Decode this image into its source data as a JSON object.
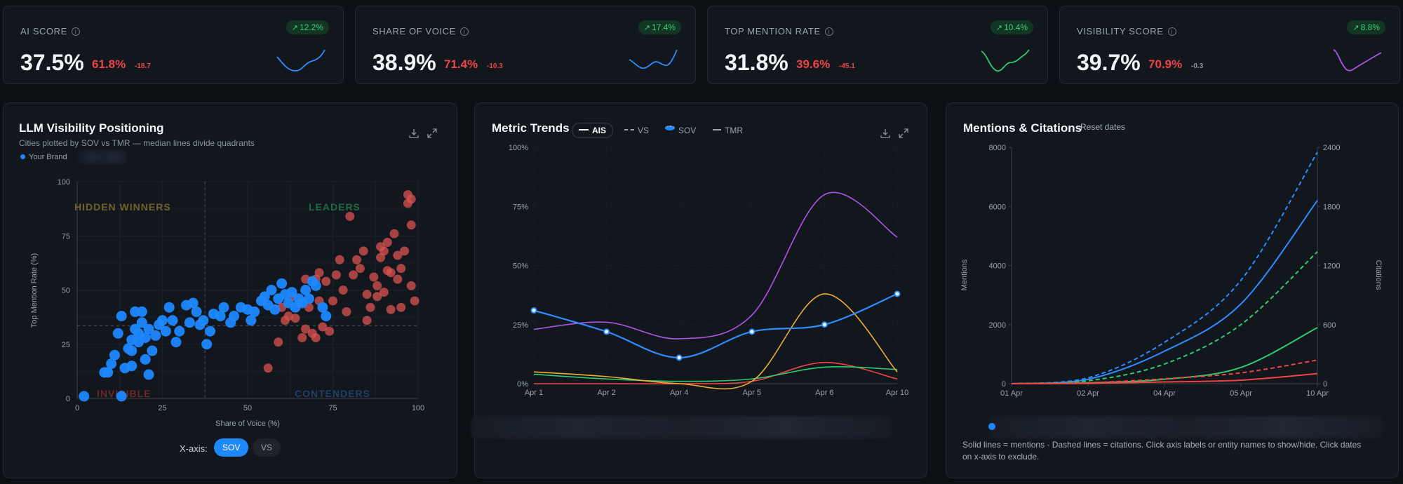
{
  "kpis": [
    {
      "title": "AI SCORE",
      "badge": "12.2%",
      "value": "37.5%",
      "comparison": "61.8%",
      "delta": "-18.7",
      "delta_tone": "negative",
      "spark_color": "#2d8cff"
    },
    {
      "title": "SHARE OF VOICE",
      "badge": "17.4%",
      "value": "38.9%",
      "comparison": "71.4%",
      "delta": "-10.3",
      "delta_tone": "negative",
      "spark_color": "#2d8cff"
    },
    {
      "title": "TOP MENTION RATE",
      "badge": "10.4%",
      "value": "31.8%",
      "comparison": "39.6%",
      "delta": "-45.1",
      "delta_tone": "negative",
      "spark_color": "#2ecc71"
    },
    {
      "title": "VISIBILITY SCORE",
      "badge": "8.8%",
      "value": "39.7%",
      "comparison": "70.9%",
      "delta": "-0.3",
      "delta_tone": "neutral",
      "spark_color": "#b054e8"
    }
  ],
  "positioning": {
    "title": "LLM Visibility Positioning",
    "subtitle": "Cities plotted by SOV vs TMR — median lines divide quadrants",
    "legend_brand": "Your Brand",
    "quadrants": {
      "top_left": "HIDDEN WINNERS",
      "top_right": "LEADERS",
      "bottom_left": "INVISIBLE",
      "bottom_right": "CONTENDERS"
    },
    "x_axis_toggle_label": "X-axis:",
    "x_axis_options": [
      "SOV",
      "VS"
    ],
    "x_axis_selected": "SOV"
  },
  "trends": {
    "title": "Metric Trends",
    "pills": [
      {
        "label": "AIS",
        "active": true
      },
      {
        "label": "VS",
        "active": false
      },
      {
        "label": "SOV",
        "active": false
      },
      {
        "label": "TMR",
        "active": false
      }
    ]
  },
  "mentions": {
    "title": "Mentions & Citations",
    "reset_label": "Reset dates",
    "note": "Solid lines = mentions · Dashed lines = citations. Click axis labels or entity names to show/hide. Click dates on x-axis to exclude."
  },
  "icons": [
    "download-icon",
    "expand-icon",
    "info-icon",
    "trend-up-icon"
  ],
  "chart_data": [
    {
      "type": "scatter",
      "xlabel": "Share of Voice (%)",
      "ylabel": "Top Mention Rate (%)",
      "xlim": [
        0,
        100
      ],
      "ylim": [
        0,
        100
      ],
      "x_ticks": [
        "0",
        "25",
        "50",
        "75",
        "100"
      ],
      "y_ticks": [
        "0",
        "25",
        "50",
        "75",
        "100"
      ],
      "median_x": 37.5,
      "median_y": 33.5,
      "series": [
        {
          "name": "Your Brand",
          "color": "#1e88ff",
          "points": [
            [
              2,
              1
            ],
            [
              13,
              1
            ],
            [
              8,
              12
            ],
            [
              9,
              12
            ],
            [
              10,
              16
            ],
            [
              11,
              20
            ],
            [
              12,
              30
            ],
            [
              13,
              38
            ],
            [
              14,
              14
            ],
            [
              15,
              23
            ],
            [
              16,
              15
            ],
            [
              16,
              22
            ],
            [
              16,
              27
            ],
            [
              17,
              32
            ],
            [
              17,
              40
            ],
            [
              18,
              26
            ],
            [
              18,
              30
            ],
            [
              19,
              35
            ],
            [
              19,
              40
            ],
            [
              20,
              18
            ],
            [
              20,
              28
            ],
            [
              21,
              32
            ],
            [
              21,
              11
            ],
            [
              22,
              22
            ],
            [
              23,
              29
            ],
            [
              24,
              34
            ],
            [
              25,
              36
            ],
            [
              26,
              31
            ],
            [
              27,
              42
            ],
            [
              28,
              36
            ],
            [
              29,
              26
            ],
            [
              30,
              31
            ],
            [
              32,
              43
            ],
            [
              33,
              35
            ],
            [
              34,
              44
            ],
            [
              35,
              40
            ],
            [
              36,
              34
            ],
            [
              37,
              36
            ],
            [
              38,
              25
            ],
            [
              39,
              31
            ],
            [
              40,
              39
            ],
            [
              42,
              38
            ],
            [
              43,
              42
            ],
            [
              45,
              35
            ],
            [
              46,
              38
            ],
            [
              48,
              42
            ],
            [
              50,
              41
            ],
            [
              51,
              36
            ],
            [
              52,
              40
            ],
            [
              54,
              45
            ],
            [
              55,
              47
            ],
            [
              56,
              43
            ],
            [
              57,
              50
            ],
            [
              58,
              41
            ],
            [
              59,
              46
            ],
            [
              60,
              53
            ],
            [
              61,
              48
            ],
            [
              62,
              44
            ],
            [
              63,
              49
            ],
            [
              64,
              42
            ],
            [
              65,
              46
            ],
            [
              66,
              44
            ],
            [
              67,
              50
            ],
            [
              68,
              46
            ],
            [
              69,
              54
            ],
            [
              70,
              52
            ],
            [
              72,
              42
            ],
            [
              73,
              38
            ]
          ]
        },
        {
          "name": "Competitors",
          "color": "#d9534f",
          "points": [
            [
              56,
              14
            ],
            [
              59,
              26
            ],
            [
              60,
              42
            ],
            [
              61,
              36
            ],
            [
              62,
              38
            ],
            [
              63,
              47
            ],
            [
              64,
              37
            ],
            [
              65,
              44
            ],
            [
              66,
              28
            ],
            [
              67,
              32
            ],
            [
              67,
              55
            ],
            [
              68,
              42
            ],
            [
              69,
              30
            ],
            [
              70,
              55
            ],
            [
              70,
              28
            ],
            [
              71,
              58
            ],
            [
              71,
              45
            ],
            [
              72,
              33
            ],
            [
              73,
              54
            ],
            [
              74,
              31
            ],
            [
              75,
              45
            ],
            [
              76,
              57
            ],
            [
              77,
              64
            ],
            [
              78,
              50
            ],
            [
              79,
              40
            ],
            [
              80,
              84
            ],
            [
              81,
              57
            ],
            [
              82,
              64
            ],
            [
              83,
              60
            ],
            [
              84,
              68
            ],
            [
              85,
              36
            ],
            [
              85,
              48
            ],
            [
              86,
              42
            ],
            [
              87,
              56
            ],
            [
              88,
              52
            ],
            [
              88,
              47
            ],
            [
              89,
              65
            ],
            [
              89,
              70
            ],
            [
              90,
              68
            ],
            [
              90,
              49
            ],
            [
              91,
              59
            ],
            [
              91,
              72
            ],
            [
              92,
              41
            ],
            [
              92,
              58
            ],
            [
              93,
              76
            ],
            [
              94,
              66
            ],
            [
              94,
              55
            ],
            [
              95,
              60
            ],
            [
              95,
              42
            ],
            [
              96,
              68
            ],
            [
              97,
              94
            ],
            [
              97,
              90
            ],
            [
              98,
              92
            ],
            [
              98,
              80
            ],
            [
              98,
              52
            ],
            [
              99,
              45
            ]
          ]
        }
      ]
    },
    {
      "type": "line",
      "categories": [
        "Apr 1",
        "Apr 2",
        "Apr 4",
        "Apr 5",
        "Apr 6",
        "Apr 10"
      ],
      "ylim": [
        0,
        100
      ],
      "y_ticks": [
        "0%",
        "25%",
        "50%",
        "75%",
        "100%"
      ],
      "series": [
        {
          "name": "AIS",
          "color": "#2d8cff",
          "values": [
            31,
            22,
            11,
            22,
            25,
            38
          ],
          "markers": true
        },
        {
          "name": "VS",
          "color": "#b054e8",
          "values": [
            23,
            26,
            19,
            29,
            80,
            62
          ]
        },
        {
          "name": "SOV",
          "color": "#f0ad33",
          "values": [
            5,
            3,
            0,
            1,
            38,
            5
          ]
        },
        {
          "name": "TMR",
          "color": "#2ecc71",
          "values": [
            4,
            2,
            1,
            2,
            7,
            6
          ]
        },
        {
          "color": "#ef4444",
          "values": [
            0,
            0,
            0,
            1,
            9,
            2
          ]
        }
      ]
    },
    {
      "type": "line",
      "categories": [
        "01 Apr",
        "02 Apr",
        "04 Apr",
        "05 Apr",
        "10 Apr"
      ],
      "ylabel": "Mentions",
      "y2label": "Citations",
      "ylim": [
        0,
        8000
      ],
      "y2lim": [
        0,
        2400
      ],
      "y_ticks": [
        "0",
        "2000",
        "4000",
        "6000",
        "8000"
      ],
      "y2_ticks": [
        "0",
        "600",
        "1200",
        "1800",
        "2400"
      ],
      "series": [
        {
          "color": "#2d8cff",
          "axis": "left",
          "style": "solid",
          "values": [
            0,
            150,
            1100,
            2700,
            6200
          ]
        },
        {
          "color": "#2d8cff",
          "axis": "right",
          "style": "dashed",
          "values": [
            0,
            60,
            420,
            1050,
            2350
          ]
        },
        {
          "color": "#2ecc71",
          "axis": "left",
          "style": "solid",
          "values": [
            0,
            30,
            150,
            550,
            1900
          ]
        },
        {
          "color": "#2ecc71",
          "axis": "right",
          "style": "dashed",
          "values": [
            0,
            30,
            200,
            600,
            1340
          ]
        },
        {
          "color": "#ef4444",
          "axis": "left",
          "style": "solid",
          "values": [
            0,
            10,
            60,
            120,
            340
          ]
        },
        {
          "color": "#ef4444",
          "axis": "right",
          "style": "dashed",
          "values": [
            0,
            10,
            50,
            110,
            240
          ]
        }
      ]
    }
  ]
}
